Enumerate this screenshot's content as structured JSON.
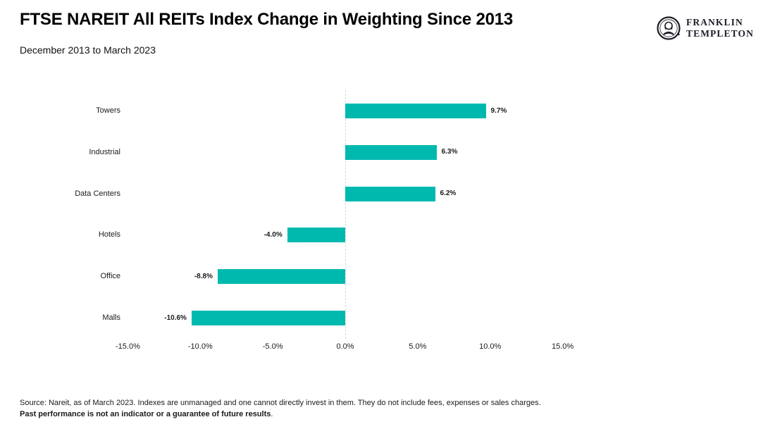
{
  "header": {
    "title": "FTSE NAREIT All REITs Index Change in Weighting Since 2013",
    "subtitle": "December 2013 to March 2023"
  },
  "logo": {
    "line1": "FRANKLIN",
    "line2": "TEMPLETON"
  },
  "chart_data": {
    "type": "bar",
    "orientation": "horizontal",
    "title": "FTSE NAREIT All REITs Index Change in Weighting Since 2013",
    "subtitle": "December 2013 to March 2023",
    "categories": [
      "Towers",
      "Industrial",
      "Data Centers",
      "Hotels",
      "Office",
      "Malls"
    ],
    "values": [
      9.7,
      6.3,
      6.2,
      -4.0,
      -8.8,
      -10.6
    ],
    "value_labels": [
      "9.7%",
      "6.3%",
      "6.2%",
      "-4.0%",
      "-8.8%",
      "-10.6%"
    ],
    "x_tick_values": [
      -15,
      -10,
      -5,
      0,
      5,
      10,
      15
    ],
    "x_tick_labels": [
      "-15.0%",
      "-10.0%",
      "-5.0%",
      "0.0%",
      "5.0%",
      "10.0%",
      "15.0%"
    ],
    "xlim": [
      -15,
      15
    ],
    "grid": false,
    "zero_line": true,
    "bar_color": "#00B9AE",
    "axis_line_color": "#D8D8D8",
    "legend": "none"
  },
  "footer": {
    "line1": "Source: Nareit, as of March 2023. Indexes are unmanaged and one cannot directly invest in them. They do not include fees, expenses or sales charges.",
    "line2_bold": "Past performance is not an indicator or a guarantee of future results",
    "line2_suffix": "."
  }
}
